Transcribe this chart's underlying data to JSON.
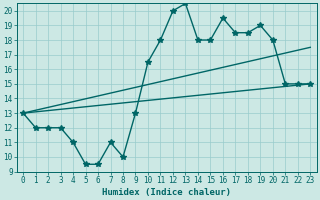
{
  "xlabel": "Humidex (Indice chaleur)",
  "bg_color": "#cce8e4",
  "line_color": "#006666",
  "grid_color": "#99cccc",
  "xlim": [
    -0.5,
    23.5
  ],
  "ylim": [
    9,
    20.5
  ],
  "xticks": [
    0,
    1,
    2,
    3,
    4,
    5,
    6,
    7,
    8,
    9,
    10,
    11,
    12,
    13,
    14,
    15,
    16,
    17,
    18,
    19,
    20,
    21,
    22,
    23
  ],
  "yticks": [
    9,
    10,
    11,
    12,
    13,
    14,
    15,
    16,
    17,
    18,
    19,
    20
  ],
  "curve1_x": [
    0,
    1,
    2,
    3,
    4,
    5,
    6,
    7,
    8,
    9,
    10,
    11,
    12,
    13,
    14,
    15,
    16,
    17,
    18,
    19,
    20,
    21,
    22,
    23
  ],
  "curve1_y": [
    13,
    12,
    12,
    12,
    11,
    9.5,
    9.5,
    11,
    10,
    13,
    16.5,
    18,
    20,
    20.5,
    18,
    18,
    19.5,
    18.5,
    18.5,
    19,
    18,
    15,
    15,
    15
  ],
  "curve2_x": [
    0,
    23
  ],
  "curve2_y": [
    13,
    17.5
  ],
  "curve3_x": [
    0,
    23
  ],
  "curve3_y": [
    13,
    15
  ],
  "marker": "*",
  "markersize": 4,
  "linewidth": 1.0,
  "tick_fontsize": 5.5,
  "xlabel_fontsize": 6.5
}
